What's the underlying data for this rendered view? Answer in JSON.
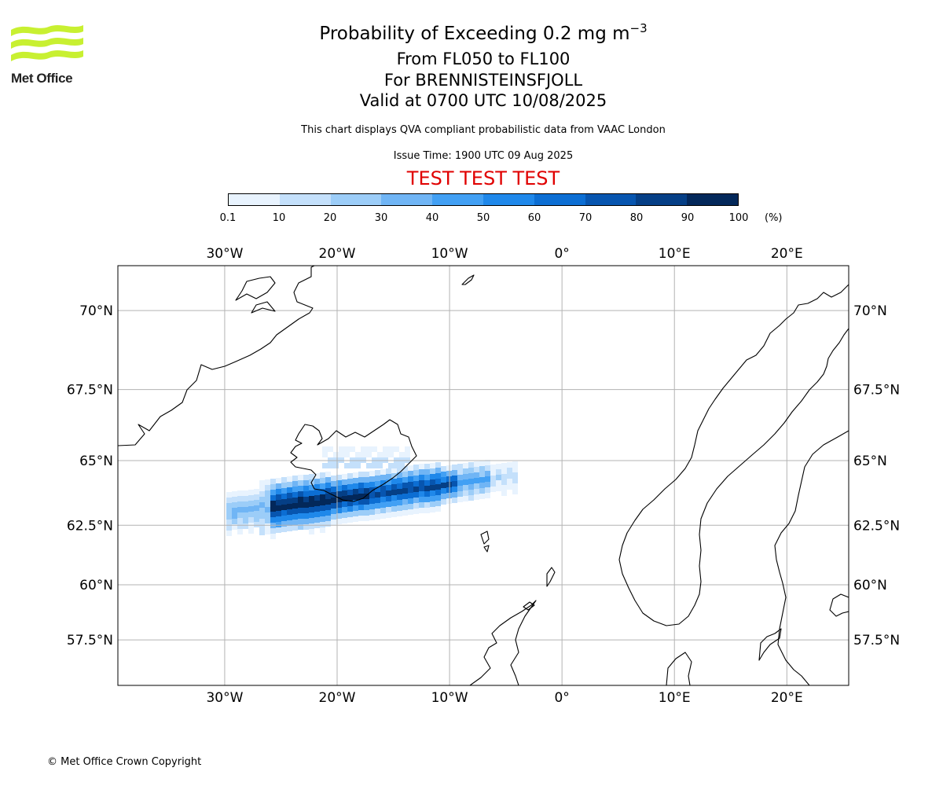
{
  "logo": {
    "text": "Met Office",
    "color": "#c8f031"
  },
  "titles": {
    "main_prefix": "Probability of Exceeding 0.2 mg m",
    "main_exponent": "−3",
    "levels": "From FL050 to FL100",
    "volcano": "For BRENNISTEINSFJOLL",
    "valid": "Valid at 0700 UTC 10/08/2025",
    "source": "This chart displays QVA compliant probabilistic data from VAAC London",
    "issue": "Issue Time: 1900 UTC 09 Aug 2025",
    "test_banner": "TEST TEST TEST"
  },
  "colorbar": {
    "ticks": [
      "0.1",
      "10",
      "20",
      "30",
      "40",
      "50",
      "60",
      "70",
      "80",
      "90",
      "100"
    ],
    "unit": "(%)",
    "colors": [
      "#e8f3fe",
      "#c4e0fb",
      "#9ccdf8",
      "#70b5f5",
      "#42a0f4",
      "#1f88ea",
      "#0c6ed3",
      "#0755af",
      "#053f86",
      "#03285a"
    ]
  },
  "map": {
    "lon_labels": [
      "30°W",
      "20°W",
      "10°W",
      "0°",
      "10°E",
      "20°E"
    ],
    "lat_labels": [
      "70°N",
      "67.5°N",
      "65°N",
      "62.5°N",
      "60°N",
      "57.5°N"
    ],
    "lon_values": [
      -30,
      -20,
      -10,
      0,
      10,
      20
    ],
    "lat_values": [
      70,
      67.5,
      65,
      62.5,
      60,
      57.5
    ],
    "extent": {
      "lon_min": -39.5,
      "lon_max": 25.5,
      "lat_min": 55.3,
      "lat_max": 71.3
    },
    "projection": "mercator",
    "gridlines": true,
    "plume_band": "dark core near Iceland south coast extending west-southwest; lighter fringe east to about 5°W"
  },
  "copyright": "© Met Office Crown Copyright"
}
